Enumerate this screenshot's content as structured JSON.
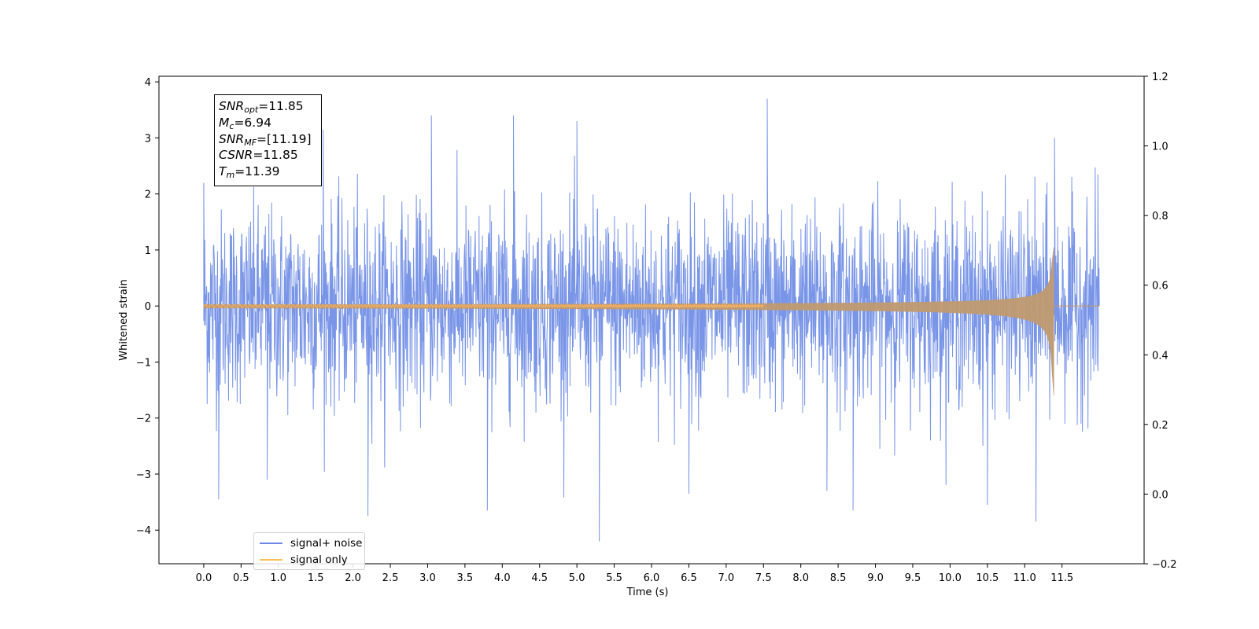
{
  "chart_data": {
    "type": "line",
    "title": "",
    "xlabel": "Time (s)",
    "ylabel": "Whitened strain",
    "xlim": [
      -0.6,
      12.6
    ],
    "ylim": [
      -4.6,
      4.1
    ],
    "y2lim": [
      -0.2,
      1.2
    ],
    "x_ticks": [
      "0.0",
      "0.5",
      "1.0",
      "1.5",
      "2.0",
      "2.5",
      "3.0",
      "3.5",
      "4.0",
      "4.5",
      "5.0",
      "5.5",
      "6.0",
      "6.5",
      "7.0",
      "7.5",
      "8.0",
      "8.5",
      "9.0",
      "9.5",
      "10.0",
      "10.5",
      "11.0",
      "11.5"
    ],
    "y_ticks": [
      "−4",
      "−3",
      "−2",
      "−1",
      "0",
      "1",
      "2",
      "3",
      "4"
    ],
    "y2_ticks": [
      "−0.2",
      "0.0",
      "0.2",
      "0.4",
      "0.6",
      "0.8",
      "1.0",
      "1.2"
    ],
    "grid": false,
    "legend_position": "lower-left",
    "series": [
      {
        "name": "signal+ noise",
        "color": "#6a89e4",
        "description_stats": {
          "t_start": 0.0,
          "t_end": 12.0,
          "approx_std": 0.85,
          "min": -4.2,
          "max": 3.7
        },
        "peaks": [
          {
            "x": 0.0,
            "y": 2.2
          },
          {
            "x": 0.2,
            "y": -3.45
          },
          {
            "x": 0.85,
            "y": -3.1
          },
          {
            "x": 1.6,
            "y": 3.15
          },
          {
            "x": 2.2,
            "y": -3.75
          },
          {
            "x": 3.05,
            "y": 3.4
          },
          {
            "x": 3.8,
            "y": -3.65
          },
          {
            "x": 4.15,
            "y": 3.4
          },
          {
            "x": 5.0,
            "y": 3.3
          },
          {
            "x": 5.3,
            "y": -4.2
          },
          {
            "x": 6.5,
            "y": -3.35
          },
          {
            "x": 7.55,
            "y": 3.7
          },
          {
            "x": 8.35,
            "y": -3.3
          },
          {
            "x": 8.7,
            "y": -3.65
          },
          {
            "x": 10.5,
            "y": -3.55
          },
          {
            "x": 11.15,
            "y": -3.85
          },
          {
            "x": 11.4,
            "y": 3.0
          },
          {
            "x": 11.98,
            "y": 2.35
          }
        ]
      },
      {
        "name": "signal only",
        "color": "#ffc05a",
        "description_stats": {
          "t_start": 0.0,
          "t_merger": 11.39,
          "t_end": 12.0,
          "peak_pos": 1.05,
          "peak_neg": -1.6
        }
      }
    ],
    "annotation": {
      "snr_opt": "=11.85",
      "mc": "=6.94",
      "snr_mf": "=[11.19]",
      "csnr": "=11.85",
      "tm": "=11.39"
    }
  },
  "legend": {
    "item1": "signal+ noise",
    "item2": "signal only"
  },
  "annotation_symbols": {
    "snr": "SNR",
    "opt": "opt",
    "mf": "MF",
    "m": "M",
    "c": "c",
    "csnr": "CSNR",
    "t": "T",
    "m_sub": "m"
  }
}
